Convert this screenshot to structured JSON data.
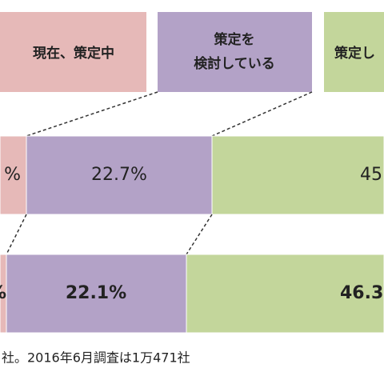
{
  "legend": {
    "items": [
      "現在、策定中",
      "策定を",
      "検討している",
      "策定し"
    ]
  },
  "rows": [
    {
      "labels": [
        "%",
        "22.7%",
        "45"
      ]
    },
    {
      "labels": [
        "%",
        "22.1%",
        "46.3"
      ]
    }
  ],
  "footnote": "社。2016年6月調査は1万471社"
}
